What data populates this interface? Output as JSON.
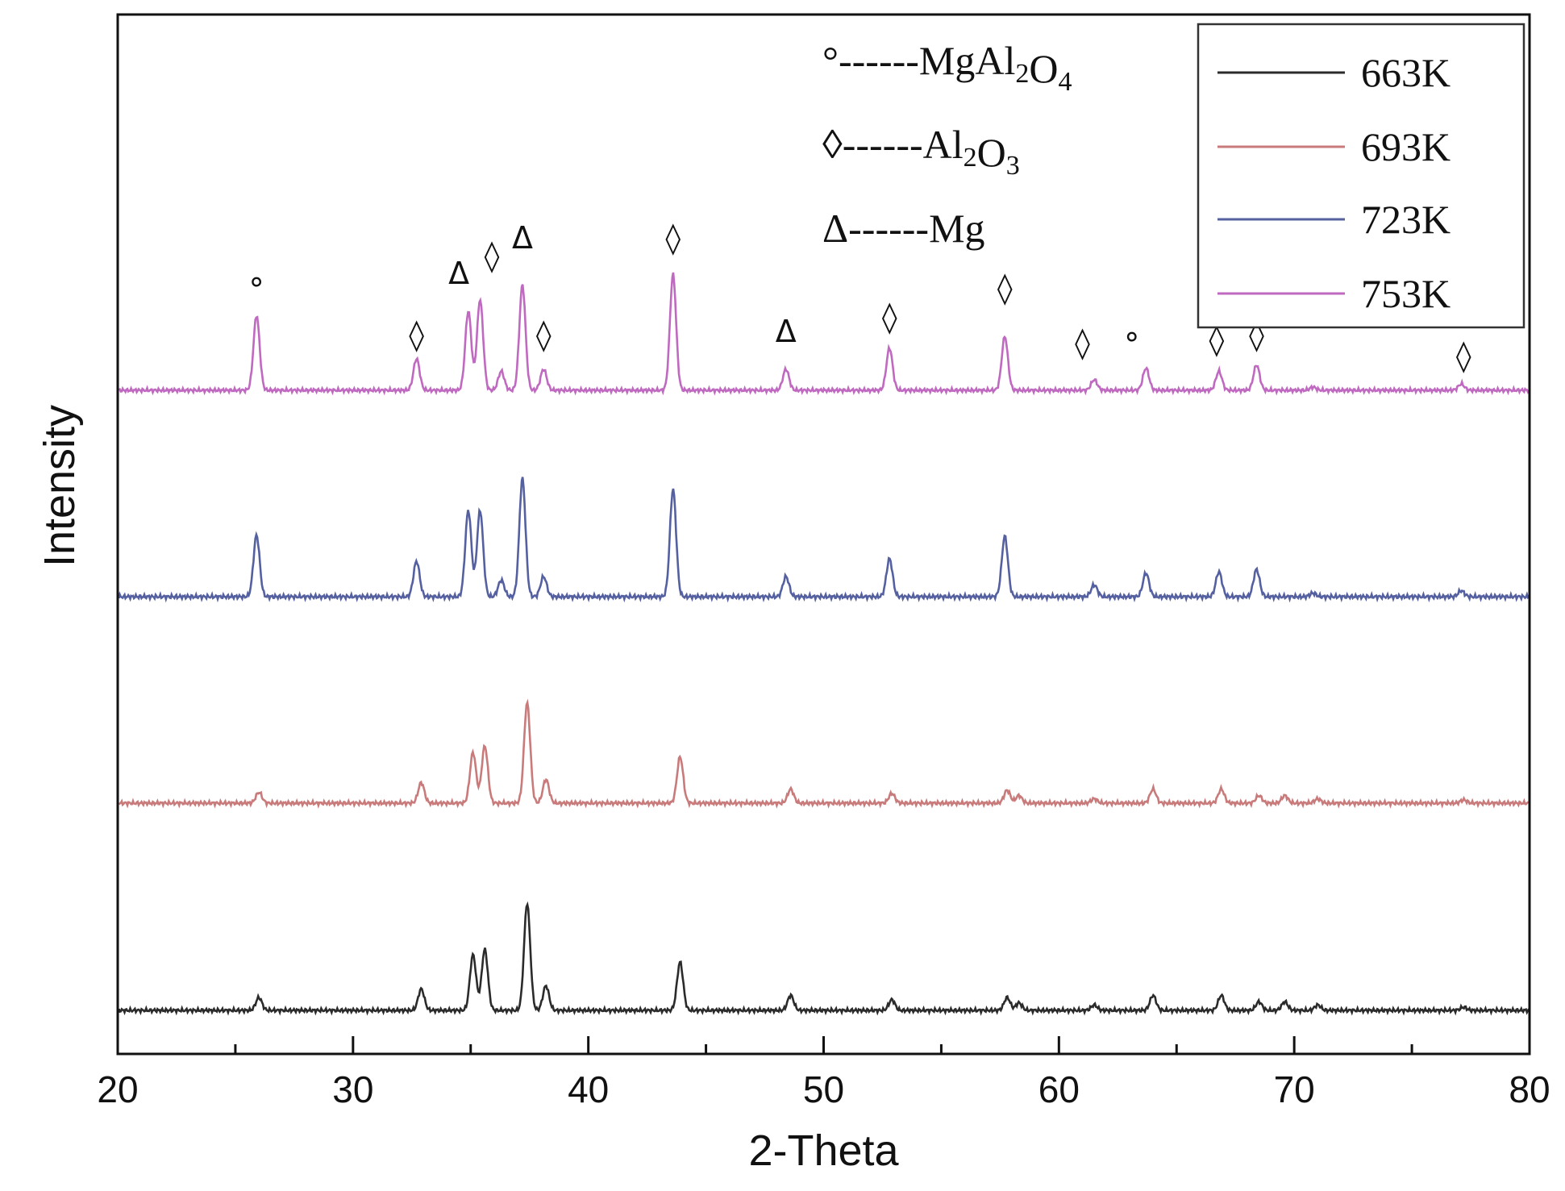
{
  "chart_data": {
    "type": "line",
    "xlabel": "2-Theta",
    "ylabel": "Intensity",
    "xlim": [
      20,
      80
    ],
    "x_ticks": [
      "20",
      "30",
      "40",
      "50",
      "60",
      "70",
      "80"
    ],
    "legend_position": "top-right",
    "y_tick_labels_shown": false,
    "series": [
      {
        "name": "663K",
        "color": "#2b2b2b",
        "baseline": 0.0,
        "peaks": [
          {
            "x": 26.0,
            "h": 0.12
          },
          {
            "x": 32.9,
            "h": 0.2
          },
          {
            "x": 35.1,
            "h": 0.52
          },
          {
            "x": 35.6,
            "h": 0.57
          },
          {
            "x": 37.4,
            "h": 1.0
          },
          {
            "x": 38.2,
            "h": 0.23
          },
          {
            "x": 43.9,
            "h": 0.45
          },
          {
            "x": 48.6,
            "h": 0.14
          },
          {
            "x": 52.9,
            "h": 0.1
          },
          {
            "x": 57.8,
            "h": 0.12
          },
          {
            "x": 58.3,
            "h": 0.07
          },
          {
            "x": 61.5,
            "h": 0.05
          },
          {
            "x": 64.0,
            "h": 0.14
          },
          {
            "x": 66.9,
            "h": 0.14
          },
          {
            "x": 68.5,
            "h": 0.08
          },
          {
            "x": 69.6,
            "h": 0.08
          },
          {
            "x": 71.0,
            "h": 0.05
          },
          {
            "x": 77.2,
            "h": 0.03
          }
        ]
      },
      {
        "name": "693K",
        "color": "#c97a7a",
        "baseline": 0.0,
        "peaks": [
          {
            "x": 26.0,
            "h": 0.1
          },
          {
            "x": 32.9,
            "h": 0.19
          },
          {
            "x": 35.1,
            "h": 0.47
          },
          {
            "x": 35.6,
            "h": 0.53
          },
          {
            "x": 37.4,
            "h": 0.93
          },
          {
            "x": 38.2,
            "h": 0.22
          },
          {
            "x": 43.9,
            "h": 0.43
          },
          {
            "x": 48.6,
            "h": 0.13
          },
          {
            "x": 52.9,
            "h": 0.09
          },
          {
            "x": 57.8,
            "h": 0.12
          },
          {
            "x": 58.3,
            "h": 0.07
          },
          {
            "x": 61.5,
            "h": 0.04
          },
          {
            "x": 64.0,
            "h": 0.13
          },
          {
            "x": 66.9,
            "h": 0.13
          },
          {
            "x": 68.5,
            "h": 0.07
          },
          {
            "x": 69.6,
            "h": 0.07
          },
          {
            "x": 71.0,
            "h": 0.04
          },
          {
            "x": 77.2,
            "h": 0.03
          }
        ]
      },
      {
        "name": "723K",
        "color": "#5560a0",
        "baseline": 0.0,
        "peaks": [
          {
            "x": 25.9,
            "h": 0.52
          },
          {
            "x": 32.7,
            "h": 0.3
          },
          {
            "x": 34.9,
            "h": 0.73
          },
          {
            "x": 35.4,
            "h": 0.73
          },
          {
            "x": 36.3,
            "h": 0.14
          },
          {
            "x": 37.2,
            "h": 1.0
          },
          {
            "x": 38.1,
            "h": 0.17
          },
          {
            "x": 43.6,
            "h": 0.91
          },
          {
            "x": 48.4,
            "h": 0.17
          },
          {
            "x": 52.8,
            "h": 0.32
          },
          {
            "x": 57.7,
            "h": 0.51
          },
          {
            "x": 61.5,
            "h": 0.1
          },
          {
            "x": 63.7,
            "h": 0.2
          },
          {
            "x": 66.8,
            "h": 0.21
          },
          {
            "x": 68.4,
            "h": 0.23
          },
          {
            "x": 70.8,
            "h": 0.03
          },
          {
            "x": 77.1,
            "h": 0.05
          }
        ]
      },
      {
        "name": "753K",
        "color": "#c069c0",
        "baseline": 0.0,
        "peaks": [
          {
            "x": 25.9,
            "h": 0.71
          },
          {
            "x": 32.7,
            "h": 0.3
          },
          {
            "x": 34.9,
            "h": 0.75
          },
          {
            "x": 35.4,
            "h": 0.86
          },
          {
            "x": 36.3,
            "h": 0.18
          },
          {
            "x": 37.2,
            "h": 1.0
          },
          {
            "x": 38.1,
            "h": 0.2
          },
          {
            "x": 43.6,
            "h": 1.1
          },
          {
            "x": 48.4,
            "h": 0.2
          },
          {
            "x": 52.8,
            "h": 0.4
          },
          {
            "x": 57.7,
            "h": 0.51
          },
          {
            "x": 61.5,
            "h": 0.1
          },
          {
            "x": 63.7,
            "h": 0.21
          },
          {
            "x": 66.8,
            "h": 0.18
          },
          {
            "x": 68.4,
            "h": 0.24
          },
          {
            "x": 70.8,
            "h": 0.03
          },
          {
            "x": 77.1,
            "h": 0.06
          }
        ]
      }
    ],
    "phase_legend": [
      {
        "symbol": "°",
        "dashes": "------",
        "parts": [
          {
            "t": "MgAl"
          },
          {
            "t": "2",
            "sub": true
          },
          {
            "t": "O"
          },
          {
            "t": "4",
            "sub": true
          }
        ]
      },
      {
        "symbol": "◊",
        "dashes": "------",
        "parts": [
          {
            "t": "Al"
          },
          {
            "t": "2",
            "sub": true
          },
          {
            "t": "O"
          },
          {
            "t": "3",
            "sub": true
          }
        ]
      },
      {
        "symbol": "Δ",
        "dashes": "------",
        "parts": [
          {
            "t": "Mg"
          }
        ]
      }
    ],
    "peak_markers": [
      {
        "symbol": "°",
        "x": 25.9
      },
      {
        "symbol": "◊",
        "x": 32.7
      },
      {
        "symbol": "Δ",
        "x": 34.5
      },
      {
        "symbol": "◊",
        "x": 35.9
      },
      {
        "symbol": "Δ",
        "x": 37.2
      },
      {
        "symbol": "◊",
        "x": 38.1
      },
      {
        "symbol": "◊",
        "x": 43.6
      },
      {
        "symbol": "Δ",
        "x": 48.4
      },
      {
        "symbol": "◊",
        "x": 52.8
      },
      {
        "symbol": "◊",
        "x": 57.7
      },
      {
        "symbol": "◊",
        "x": 61.0
      },
      {
        "symbol": "°",
        "x": 63.1
      },
      {
        "symbol": "◊",
        "x": 66.7
      },
      {
        "symbol": "◊",
        "x": 68.4
      },
      {
        "symbol": "◊",
        "x": 77.2
      }
    ]
  }
}
